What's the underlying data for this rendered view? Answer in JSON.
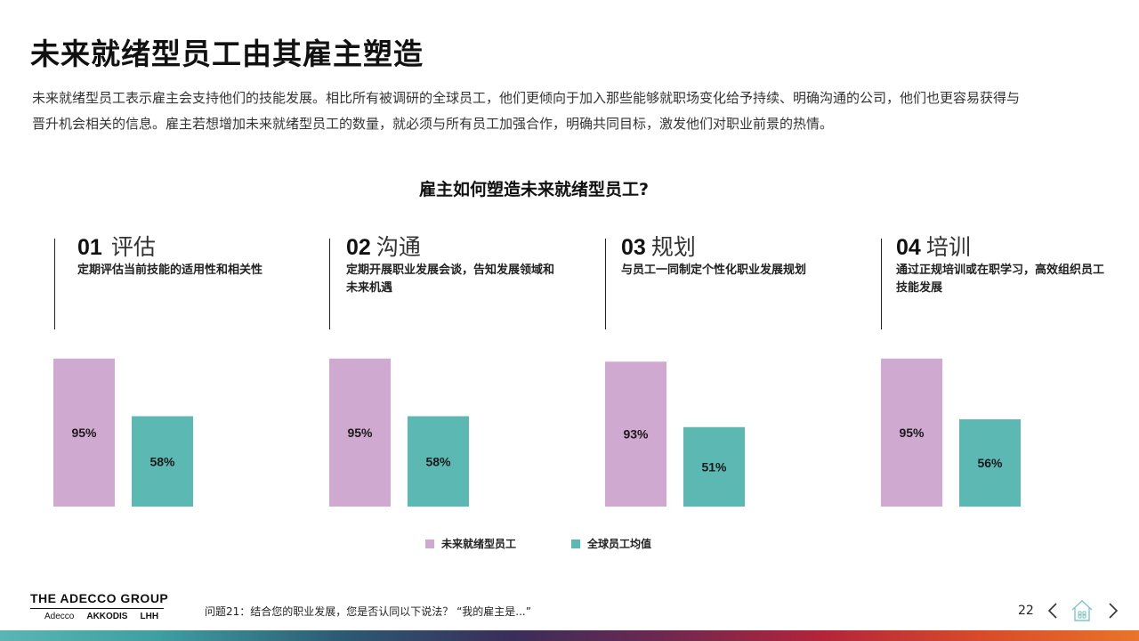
{
  "slide": {
    "title": "未来就绪型员工由其雇主塑造",
    "intro": [
      "未来就绪型员工表示雇主会支持他们的技能发展。相比所有被调研的全球员工，他们更倾向于加入那些能够就职场变化给予持续、明确沟通的公司，他们也更容易获得与",
      "晋升机会相关的信息。雇主若想增加未来就绪型员工的数量，就必须与所有员工加强合作，明确共同目标，激发他们对职业前景的热情。"
    ],
    "subtitle": "雇主如何塑造未来就绪型员工?",
    "columns": [
      {
        "num": "01",
        "name": "评估",
        "desc": "定期评估当前技能的适用性和相关性"
      },
      {
        "num": "02",
        "name": "沟通",
        "desc": "定期开展职业发展会谈，告知发展领域和未来机遇"
      },
      {
        "num": "03",
        "name": "规划",
        "desc": "与员工一同制定个性化职业发展规划"
      },
      {
        "num": "04",
        "name": "培训",
        "desc": "通过正规培训或在职学习，高效组织员工技能发展"
      }
    ],
    "footnote": "问题21：结合您的职业发展，您是否认同以下说法？ “我的雇主是...”",
    "page_number": "22",
    "logo": {
      "main": "THE ADECCO GROUP",
      "subs": [
        "Adecco",
        "AKKODIS",
        "LHH"
      ]
    }
  },
  "chart_data": {
    "type": "bar",
    "categories": [
      "01 评估",
      "02 沟通",
      "03 规划",
      "04 培训"
    ],
    "series": [
      {
        "name": "未来就绪型员工",
        "values": [
          95,
          95,
          93,
          95
        ],
        "labels": [
          "95%",
          "95%",
          "93%",
          "95%"
        ],
        "color": "#cfa9cf"
      },
      {
        "name": "全球员工均值",
        "values": [
          58,
          58,
          51,
          56
        ],
        "labels": [
          "58%",
          "58%",
          "51%",
          "56%"
        ],
        "color": "#5cb8b3"
      }
    ],
    "unit": "%",
    "ylim": [
      0,
      100
    ],
    "grid": false,
    "legend_position": "bottom-center"
  },
  "icons": {
    "prev": "chevron-left-icon",
    "home": "home-icon",
    "next": "chevron-right-icon"
  }
}
